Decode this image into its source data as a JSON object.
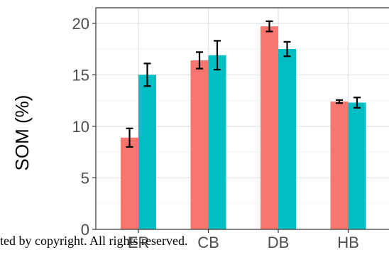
{
  "chart_data": {
    "type": "bar",
    "title": "",
    "xlabel": "",
    "ylabel": "SOM (%)",
    "categories": [
      "ER",
      "CB",
      "DB",
      "HB"
    ],
    "series": [
      {
        "color": "#F8766D",
        "values": [
          8.9,
          16.4,
          19.7,
          12.4
        ],
        "errors": [
          0.9,
          0.8,
          0.5,
          0.15
        ]
      },
      {
        "color": "#00BFC4",
        "values": [
          15.0,
          16.9,
          17.5,
          12.3
        ],
        "errors": [
          1.1,
          1.4,
          0.7,
          0.5
        ]
      }
    ],
    "ylim": [
      0,
      21.5
    ],
    "yticks": [
      0,
      5,
      10,
      15,
      20
    ],
    "grid": true,
    "legend": "none"
  },
  "watermark": "ted by copyright. All rights reserved."
}
